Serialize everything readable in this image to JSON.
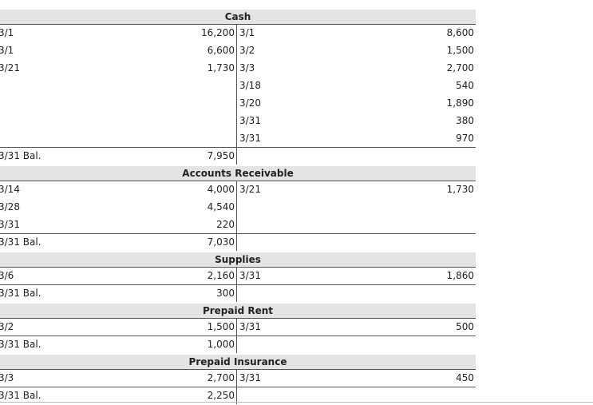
{
  "accounts": [
    {
      "title": "Cash",
      "debits": [
        {
          "date": "3/1",
          "amount": "16,200"
        },
        {
          "date": "3/1",
          "amount": "6,600"
        },
        {
          "date": "3/21",
          "amount": "1,730"
        }
      ],
      "credits": [
        {
          "date": "3/1",
          "amount": "8,600"
        },
        {
          "date": "3/2",
          "amount": "1,500"
        },
        {
          "date": "3/3",
          "amount": "2,700"
        },
        {
          "date": "3/18",
          "amount": "540"
        },
        {
          "date": "3/20",
          "amount": "1,890"
        },
        {
          "date": "3/31",
          "amount": "380"
        },
        {
          "date": "3/31",
          "amount": "970"
        }
      ],
      "balance": {
        "label": "3/31 Bal.",
        "amount": "7,950"
      }
    },
    {
      "title": "Accounts Receivable",
      "debits": [
        {
          "date": "3/14",
          "amount": "4,000"
        },
        {
          "date": "3/28",
          "amount": "4,540"
        },
        {
          "date": "3/31",
          "amount": "220"
        }
      ],
      "credits": [
        {
          "date": "3/21",
          "amount": "1,730"
        }
      ],
      "balance": {
        "label": "3/31 Bal.",
        "amount": "7,030"
      }
    },
    {
      "title": "Supplies",
      "debits": [
        {
          "date": "3/6",
          "amount": "2,160"
        }
      ],
      "credits": [
        {
          "date": "3/31",
          "amount": "1,860"
        }
      ],
      "balance": {
        "label": "3/31 Bal.",
        "amount": "300"
      }
    },
    {
      "title": "Prepaid Rent",
      "debits": [
        {
          "date": "3/2",
          "amount": "1,500"
        }
      ],
      "credits": [
        {
          "date": "3/31",
          "amount": "500"
        }
      ],
      "balance": {
        "label": "3/31 Bal.",
        "amount": "1,000"
      }
    },
    {
      "title": "Prepaid Insurance",
      "debits": [
        {
          "date": "3/3",
          "amount": "2,700"
        }
      ],
      "credits": [
        {
          "date": "3/31",
          "amount": "450"
        }
      ],
      "balance": {
        "label": "3/31 Bal.",
        "amount": "2,250"
      }
    }
  ]
}
